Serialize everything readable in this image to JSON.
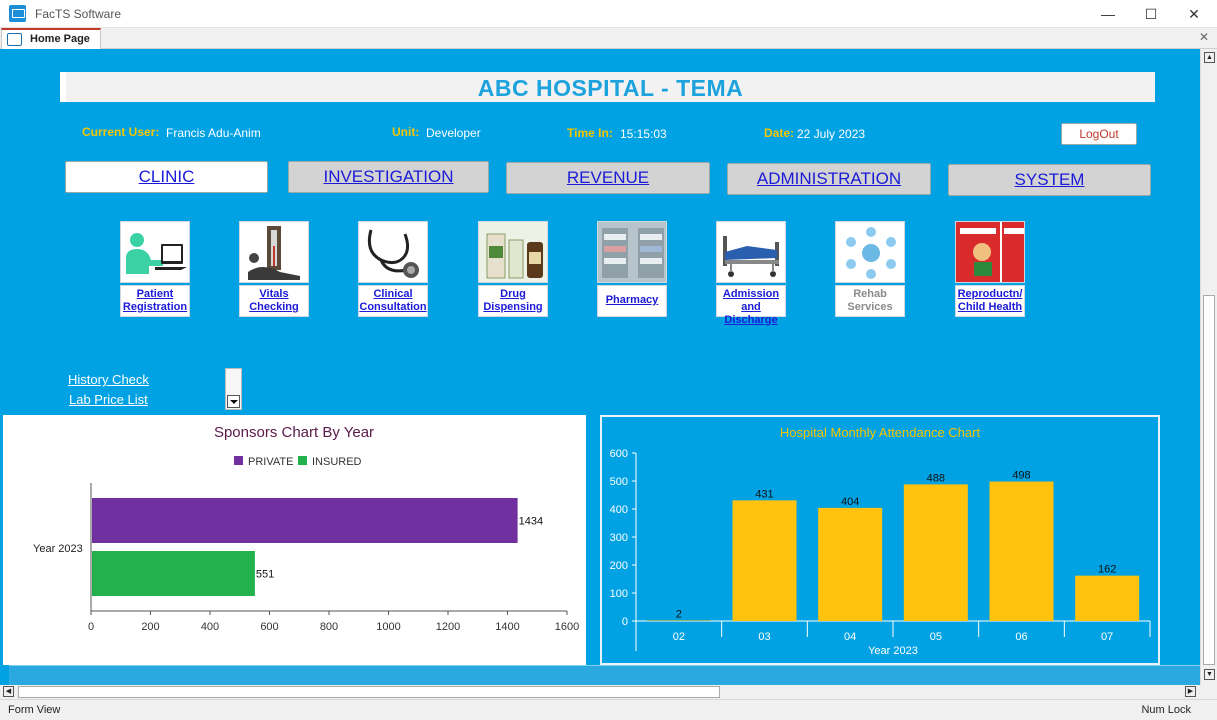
{
  "window": {
    "app_title": "FacTS Software",
    "tab_label": "Home Page",
    "status_left": "Form View",
    "status_right": "Num Lock"
  },
  "header": {
    "hospital_name": "ABC HOSPITAL - TEMA",
    "current_user_label": "Current User:",
    "current_user": "Francis Adu-Anim",
    "unit_label": "Unit:",
    "unit": "Developer",
    "time_in_label": "Time In:",
    "time_in": "15:15:03",
    "date_label": "Date:",
    "date": "22 July 2023",
    "logout_label": "LogOut"
  },
  "modules": [
    "CLINIC",
    "INVESTIGATION",
    "REVENUE",
    "ADMINISTRATION",
    "SYSTEM"
  ],
  "active_module": "CLINIC",
  "tiles": [
    {
      "line1": "Patient",
      "line2": "Registration",
      "icon": "patient-registration-icon",
      "enabled": true
    },
    {
      "line1": "Vitals",
      "line2": "Checking",
      "icon": "blood-pressure-icon",
      "enabled": true
    },
    {
      "line1": "Clinical",
      "line2": "Consultation",
      "icon": "stethoscope-icon",
      "enabled": true
    },
    {
      "line1": "Drug",
      "line2": "Dispensing",
      "icon": "medicine-bottles-icon",
      "enabled": true
    },
    {
      "line1": "Pharmacy",
      "line2": "",
      "icon": "pharmacy-shelves-icon",
      "enabled": true
    },
    {
      "line1": "Admission",
      "line2": "and Discharge",
      "icon": "hospital-bed-icon",
      "enabled": true
    },
    {
      "line1": "Rehab",
      "line2": "Services",
      "icon": "rehab-services-icon",
      "enabled": false
    },
    {
      "line1": "Reproductn/",
      "line2": "Child Health",
      "icon": "child-health-icon",
      "enabled": true
    }
  ],
  "links": {
    "history_check": "History Check",
    "lab_price_list": "Lab Price List"
  },
  "chart_data": [
    {
      "type": "bar",
      "orientation": "horizontal",
      "title": "Sponsors Chart By Year",
      "categories": [
        "Year 2023"
      ],
      "series": [
        {
          "name": "PRIVATE",
          "values": [
            1434
          ],
          "color": "#7030a0"
        },
        {
          "name": "INSURED",
          "values": [
            551
          ],
          "color": "#22b14c"
        }
      ],
      "xlim": [
        0,
        1600
      ],
      "xticks": [
        0,
        200,
        400,
        600,
        800,
        1000,
        1200,
        1400,
        1600
      ],
      "legend": "top",
      "grid": false
    },
    {
      "type": "bar",
      "title": "Hospital Monthly Attendance Chart",
      "xlabel": "Year 2023",
      "categories": [
        "02",
        "03",
        "04",
        "05",
        "06",
        "07"
      ],
      "values": [
        2,
        431,
        404,
        488,
        498,
        162
      ],
      "ylim": [
        0,
        600
      ],
      "yticks": [
        0,
        100,
        200,
        300,
        400,
        500,
        600
      ],
      "bar_color": "#ffc20e",
      "grid": false
    }
  ]
}
